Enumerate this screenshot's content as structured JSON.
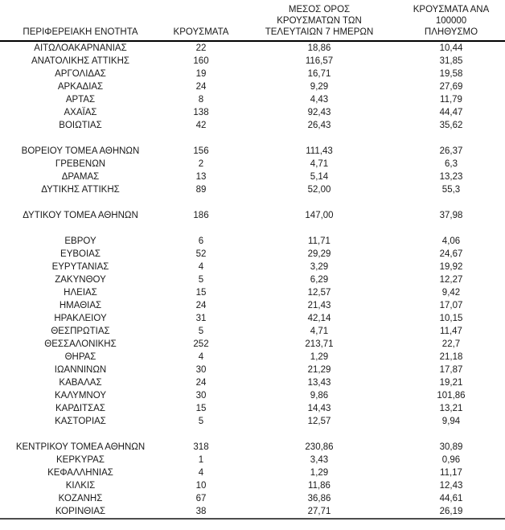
{
  "table": {
    "column_keys": [
      "region",
      "cases",
      "avg7",
      "per100k"
    ],
    "headers": [
      {
        "key": "region",
        "label": "ΠΕΡΙΦΕΡΕΙΑΚΗ ΕΝΟΤΗΤΑ"
      },
      {
        "key": "cases",
        "label": "ΚΡΟΥΣΜΑΤΑ"
      },
      {
        "key": "avg7",
        "label": "ΜΕΣΟΣ ΟΡΟΣ\nΚΡΟΥΣΜΑΤΩΝ ΤΩΝ\nΤΕΛΕΥΤΑΙΩΝ 7 ΗΜΕΡΩΝ"
      },
      {
        "key": "per100k",
        "label": "ΚΡΟΥΣΜΑΤΑ ΑΝΑ 100000\nΠΛΗΘΥΣΜΟ"
      }
    ],
    "rows": [
      {
        "region": "ΑΙΤΩΛΟΑΚΑΡΝΑΝΙΑΣ",
        "cases": "22",
        "avg7": "18,86",
        "per100k": "10,44"
      },
      {
        "region": "ΑΝΑΤΟΛΙΚΗΣ ΑΤΤΙΚΗΣ",
        "cases": "160",
        "avg7": "116,57",
        "per100k": "31,85"
      },
      {
        "region": "ΑΡΓΟΛΙΔΑΣ",
        "cases": "19",
        "avg7": "16,71",
        "per100k": "19,58"
      },
      {
        "region": "ΑΡΚΑΔΙΑΣ",
        "cases": "24",
        "avg7": "9,29",
        "per100k": "27,69"
      },
      {
        "region": "ΑΡΤΑΣ",
        "cases": "8",
        "avg7": "4,43",
        "per100k": "11,79"
      },
      {
        "region": "ΑΧΑΪΑΣ",
        "cases": "138",
        "avg7": "92,43",
        "per100k": "44,47"
      },
      {
        "region": "ΒΟΙΩΤΙΑΣ",
        "cases": "42",
        "avg7": "26,43",
        "per100k": "35,62"
      },
      {
        "spacer": true
      },
      {
        "region": "ΒΟΡΕΙΟΥ ΤΟΜΕΑ ΑΘΗΝΩΝ",
        "cases": "156",
        "avg7": "111,43",
        "per100k": "26,37"
      },
      {
        "region": "ΓΡΕΒΕΝΩΝ",
        "cases": "2",
        "avg7": "4,71",
        "per100k": "6,3"
      },
      {
        "region": "ΔΡΑΜΑΣ",
        "cases": "13",
        "avg7": "5,14",
        "per100k": "13,23"
      },
      {
        "region": "ΔΥΤΙΚΗΣ ΑΤΤΙΚΗΣ",
        "cases": "89",
        "avg7": "52,00",
        "per100k": "55,3"
      },
      {
        "spacer": true
      },
      {
        "region": "ΔΥΤΙΚΟΥ ΤΟΜΕΑ ΑΘΗΝΩΝ",
        "cases": "186",
        "avg7": "147,00",
        "per100k": "37,98"
      },
      {
        "spacer": true
      },
      {
        "region": "ΕΒΡΟΥ",
        "cases": "6",
        "avg7": "11,71",
        "per100k": "4,06"
      },
      {
        "region": "ΕΥΒΟΙΑΣ",
        "cases": "52",
        "avg7": "29,29",
        "per100k": "24,67"
      },
      {
        "region": "ΕΥΡΥΤΑΝΙΑΣ",
        "cases": "4",
        "avg7": "3,29",
        "per100k": "19,92"
      },
      {
        "region": "ΖΑΚΥΝΘΟΥ",
        "cases": "5",
        "avg7": "6,29",
        "per100k": "12,27"
      },
      {
        "region": "ΗΛΕΙΑΣ",
        "cases": "15",
        "avg7": "12,57",
        "per100k": "9,42"
      },
      {
        "region": "ΗΜΑΘΙΑΣ",
        "cases": "24",
        "avg7": "21,43",
        "per100k": "17,07"
      },
      {
        "region": "ΗΡΑΚΛΕΙΟΥ",
        "cases": "31",
        "avg7": "42,14",
        "per100k": "10,15"
      },
      {
        "region": "ΘΕΣΠΡΩΤΙΑΣ",
        "cases": "5",
        "avg7": "4,71",
        "per100k": "11,47"
      },
      {
        "region": "ΘΕΣΣΑΛΟΝΙΚΗΣ",
        "cases": "252",
        "avg7": "213,71",
        "per100k": "22,7"
      },
      {
        "region": "ΘΗΡΑΣ",
        "cases": "4",
        "avg7": "1,29",
        "per100k": "21,18"
      },
      {
        "region": "ΙΩΑΝΝΙΝΩΝ",
        "cases": "30",
        "avg7": "21,29",
        "per100k": "17,87"
      },
      {
        "region": "ΚΑΒΑΛΑΣ",
        "cases": "24",
        "avg7": "13,43",
        "per100k": "19,21"
      },
      {
        "region": "ΚΑΛΥΜΝΟΥ",
        "cases": "30",
        "avg7": "9,86",
        "per100k": "101,86"
      },
      {
        "region": "ΚΑΡΔΙΤΣΑΣ",
        "cases": "15",
        "avg7": "14,43",
        "per100k": "13,21"
      },
      {
        "region": "ΚΑΣΤΟΡΙΑΣ",
        "cases": "5",
        "avg7": "12,57",
        "per100k": "9,94"
      },
      {
        "spacer": true
      },
      {
        "region": "ΚΕΝΤΡΙΚΟΥ ΤΟΜΕΑ ΑΘΗΝΩΝ",
        "cases": "318",
        "avg7": "230,86",
        "per100k": "30,89"
      },
      {
        "region": "ΚΕΡΚΥΡΑΣ",
        "cases": "1",
        "avg7": "3,43",
        "per100k": "0,96"
      },
      {
        "region": "ΚΕΦΑΛΛΗΝΙΑΣ",
        "cases": "4",
        "avg7": "1,29",
        "per100k": "11,17"
      },
      {
        "region": "ΚΙΛΚΙΣ",
        "cases": "10",
        "avg7": "11,86",
        "per100k": "12,43"
      },
      {
        "region": "ΚΟΖΑΝΗΣ",
        "cases": "67",
        "avg7": "36,86",
        "per100k": "44,61"
      },
      {
        "region": "ΚΟΡΙΝΘΙΑΣ",
        "cases": "38",
        "avg7": "27,71",
        "per100k": "26,19"
      }
    ]
  },
  "colors": {
    "text": "#1a1a1a",
    "header_rule": "#000000",
    "header_rule_thin": "#b3b3b3",
    "bottom_rule": "#4d4d4d",
    "background": "#ffffff"
  }
}
